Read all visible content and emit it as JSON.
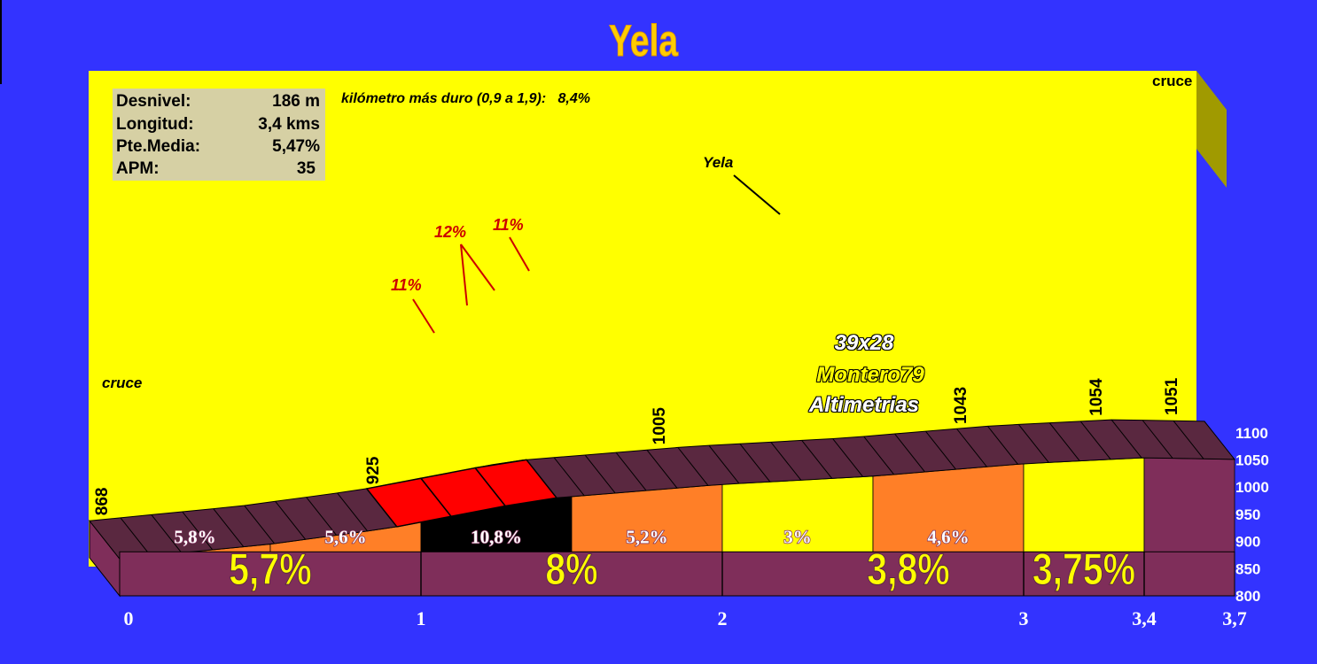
{
  "chart_data": {
    "type": "area",
    "title": "Yela",
    "colors": {
      "background": "#3333ff",
      "panel": "#ffff00",
      "orange": "#ff7f27",
      "band": "#7f2e5a",
      "road": "#5a2840",
      "black": "#000000",
      "hard": "#ff0000",
      "title": "#ffcc00",
      "big_text": "#ffff00",
      "side": "#a09a00"
    },
    "stats": [
      {
        "label": "Desnivel:",
        "value": "186 m"
      },
      {
        "label": "Longitud:",
        "value": "3,4 kms"
      },
      {
        "label": "Pte.Media:",
        "value": "5,47%"
      },
      {
        "label": "APM:",
        "value": "35"
      }
    ],
    "hardest_km": "kilómetro más duro (0,9 a 1,9):   8,4%",
    "y_axis": {
      "ticks": [
        800,
        850,
        900,
        950,
        1000,
        1050,
        1100
      ],
      "ylim": [
        800,
        1100
      ]
    },
    "x_axis": {
      "ticks": [
        "0",
        "1",
        "2",
        "3",
        "3,4",
        "3,7"
      ],
      "xlim": [
        0,
        3.7
      ]
    },
    "profile": [
      {
        "x": 0,
        "y": 868
      },
      {
        "x": 0.5,
        "y": 895
      },
      {
        "x": 0.9,
        "y": 925
      },
      {
        "x": 1.4,
        "y": 978
      },
      {
        "x": 2.0,
        "y": 1005
      },
      {
        "x": 2.5,
        "y": 1020
      },
      {
        "x": 3.0,
        "y": 1043
      },
      {
        "x": 3.4,
        "y": 1054
      },
      {
        "x": 3.7,
        "y": 1051
      }
    ],
    "segments": [
      {
        "from": 0,
        "to": 0.5,
        "grade": "5,8%",
        "fill": "orange"
      },
      {
        "from": 0.5,
        "to": 1.0,
        "grade": "5,6%",
        "fill": "orange"
      },
      {
        "from": 1.0,
        "to": 1.5,
        "grade": "10,8%",
        "fill": "black"
      },
      {
        "from": 1.5,
        "to": 2.0,
        "grade": "5,2%",
        "fill": "orange"
      },
      {
        "from": 2.0,
        "to": 2.5,
        "grade": "3%",
        "fill": "panel"
      },
      {
        "from": 2.5,
        "to": 3.0,
        "grade": "4,6%",
        "fill": "orange"
      },
      {
        "from": 3.0,
        "to": 3.4,
        "grade": "",
        "fill": "panel"
      },
      {
        "from": 3.4,
        "to": 3.7,
        "grade": "",
        "fill": "band"
      }
    ],
    "km_averages": [
      "5,7%",
      "8%",
      "3,8%",
      "3,75%"
    ],
    "altitude_labels": [
      "868",
      "925",
      "1005",
      "1043",
      "1054",
      "1051"
    ],
    "place_labels": [
      "cruce",
      "Yela",
      "cruce"
    ],
    "steep_labels": [
      "11%",
      "12%",
      "11%"
    ],
    "watermark": [
      "39x28",
      "Montero79",
      "Altimetrias"
    ]
  }
}
